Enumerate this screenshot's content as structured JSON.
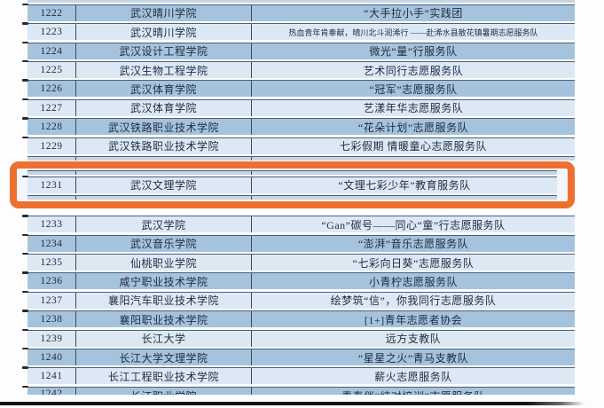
{
  "table": {
    "description": "志愿服务队获奖名单表格",
    "rows": [
      {
        "no": "1222",
        "school": "武汉晴川学院",
        "team": "“大手拉小手”实践团"
      },
      {
        "no": "1223",
        "school": "武汉晴川学院",
        "team": "热血青年肯奉献，晴川北斗润浠行 ——赴浠水县散花镇暑期志愿服务队"
      },
      {
        "no": "1224",
        "school": "武汉设计工程学院",
        "team": "微光“量”行服务队"
      },
      {
        "no": "1225",
        "school": "武汉生物工程学院",
        "team": "艺术同行志愿服务队"
      },
      {
        "no": "1226",
        "school": "武汉体育学院",
        "team": "“冠军”志愿服务队"
      },
      {
        "no": "1227",
        "school": "武汉体育学院",
        "team": "艺漾年华志愿服务队"
      },
      {
        "no": "1228",
        "school": "武汉铁路职业技术学院",
        "team": "“花朵计划”志愿服务队"
      },
      {
        "no": "1229",
        "school": "武汉铁路职业技术学院",
        "team": "七彩假期 情暖童心志愿服务队"
      },
      {
        "no": "1231",
        "school": "武汉文理学院",
        "team": "“文理七彩少年”教育服务队"
      },
      {
        "no": "1233",
        "school": "武汉学院",
        "team": "“Gan”碳号——同心“童”行志愿服务队"
      },
      {
        "no": "1234",
        "school": "武汉音乐学院",
        "team": "“澎湃”音乐志愿服务队"
      },
      {
        "no": "1235",
        "school": "仙桃职业学院",
        "team": "“七彩向日葵”志愿服务队"
      },
      {
        "no": "1236",
        "school": "咸宁职业技术学院",
        "team": "小青柠志愿服务队"
      },
      {
        "no": "1237",
        "school": "襄阳汽车职业技术学院",
        "team": "绘梦筑“信”，你我同行志愿服务队"
      },
      {
        "no": "1238",
        "school": "襄阳职业技术学院",
        "team": "[1+]青年志愿者协会"
      },
      {
        "no": "1239",
        "school": "长江大学",
        "team": "远方支教队"
      },
      {
        "no": "1240",
        "school": "长江大学文理学院",
        "team": "“星星之火”青马支教队"
      },
      {
        "no": "1241",
        "school": "长江工程职业技术学院",
        "team": "薪火志愿服务队"
      },
      {
        "no": "1242",
        "school": "长江职业学院",
        "team": "青春伴“结对培训”志愿服务队",
        "clipped": true
      }
    ]
  },
  "highlight": {
    "row": "1231",
    "border_color": "#ee7030"
  },
  "colors": {
    "row_even": "#a6c3dd",
    "row_odd": "#dcE9f4",
    "strip_bg": "#c5d6e6",
    "border": "#4e5f77",
    "divider": "#3d4a5d",
    "tick": "#262b33",
    "text": "#1f2b3e",
    "bottom_line": "#141414"
  }
}
